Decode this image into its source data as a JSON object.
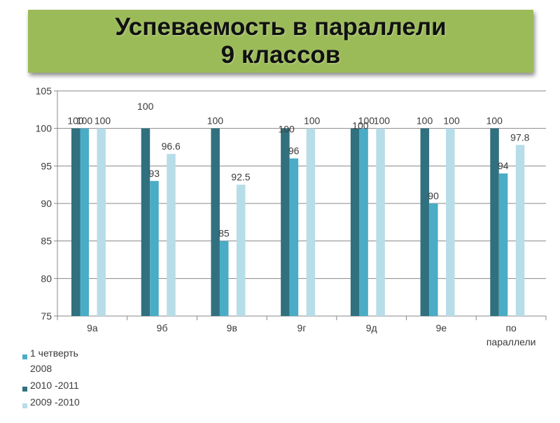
{
  "header": {
    "title_line1": "Успеваемость в параллели",
    "title_line2": "9 классов"
  },
  "colors": {
    "banner": "#9bbb59",
    "series_1": "#4bacc6",
    "series_2": "#31707f",
    "series_3": "#b7dde8",
    "gridline": "#888888"
  },
  "chart_data": {
    "type": "bar",
    "ylim": [
      75,
      105
    ],
    "yticks": [
      "75",
      "80",
      "85",
      "90",
      "95",
      "100",
      "105"
    ],
    "grid": true,
    "legend_position": "bottom-left",
    "categories": [
      [
        "9а"
      ],
      [
        "9б"
      ],
      [
        "9в"
      ],
      [
        "9г"
      ],
      [
        "9д"
      ],
      [
        "9е"
      ],
      [
        "по",
        "параллели"
      ]
    ],
    "series": [
      {
        "name": "1 четверть 2008",
        "legend_lines": [
          "1 четверть",
          "2008"
        ],
        "values": [
          100,
          93,
          85,
          96,
          100,
          90,
          94
        ],
        "labels": [
          "100",
          "93",
          "85",
          "96",
          "100",
          "90",
          "94"
        ]
      },
      {
        "name": "2010 -2011",
        "legend_lines": [
          "2010 -2011"
        ],
        "values": [
          100,
          100,
          100,
          100,
          100,
          100,
          100
        ],
        "labels": [
          "100",
          "100",
          "100",
          "100",
          "100",
          "100",
          "100"
        ]
      },
      {
        "name": "2009 -2010",
        "legend_lines": [
          "2009 -2010"
        ],
        "values": [
          100,
          96.6,
          92.5,
          100,
          100,
          100,
          97.8
        ],
        "labels": [
          "100",
          "96.6",
          "92.5",
          "100",
          "100",
          "100",
          "97.8"
        ]
      }
    ]
  }
}
